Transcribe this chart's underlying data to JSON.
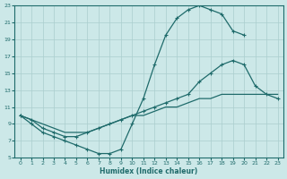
{
  "xlabel": "Humidex (Indice chaleur)",
  "bg_color": "#cce8e8",
  "grid_color": "#aacece",
  "line_color": "#1f6b6b",
  "xlim": [
    -0.5,
    23.5
  ],
  "ylim": [
    5,
    23
  ],
  "xticks": [
    0,
    1,
    2,
    3,
    4,
    5,
    6,
    7,
    8,
    9,
    10,
    11,
    12,
    13,
    14,
    15,
    16,
    17,
    18,
    19,
    20,
    21,
    22,
    23
  ],
  "yticks": [
    5,
    7,
    9,
    11,
    13,
    15,
    17,
    19,
    21,
    23
  ],
  "series1_x": [
    0,
    1,
    2,
    3,
    4,
    5,
    6,
    7,
    8,
    9,
    10,
    11,
    12,
    13,
    14,
    15,
    16,
    17,
    18,
    19,
    20
  ],
  "series1_y": [
    10,
    9,
    8,
    7.5,
    7,
    6.5,
    6,
    5.5,
    5.5,
    6,
    9,
    12,
    16,
    19.5,
    21.5,
    22.5,
    23,
    22.5,
    22,
    20,
    19.5
  ],
  "series2_x": [
    0,
    1,
    2,
    3,
    4,
    5,
    6,
    7,
    8,
    9,
    10,
    11,
    12,
    13,
    14,
    15,
    16,
    17,
    18,
    19,
    20,
    21,
    22,
    23
  ],
  "series2_y": [
    10,
    9.5,
    8.5,
    8,
    7.5,
    7.5,
    8,
    8.5,
    9,
    9.5,
    10,
    10.5,
    11,
    11.5,
    12,
    12.5,
    14,
    15,
    16,
    16.5,
    16,
    13.5,
    12.5,
    12
  ],
  "series3_x": [
    0,
    1,
    2,
    3,
    4,
    5,
    6,
    7,
    8,
    9,
    10,
    11,
    12,
    13,
    14,
    15,
    16,
    17,
    18,
    19,
    20,
    21,
    22,
    23
  ],
  "series3_y": [
    10,
    9.5,
    9,
    8.5,
    8,
    8,
    8,
    8.5,
    9,
    9.5,
    10,
    10,
    10.5,
    11,
    11,
    11.5,
    12,
    12,
    12.5,
    12.5,
    12.5,
    12.5,
    12.5,
    12.5
  ]
}
